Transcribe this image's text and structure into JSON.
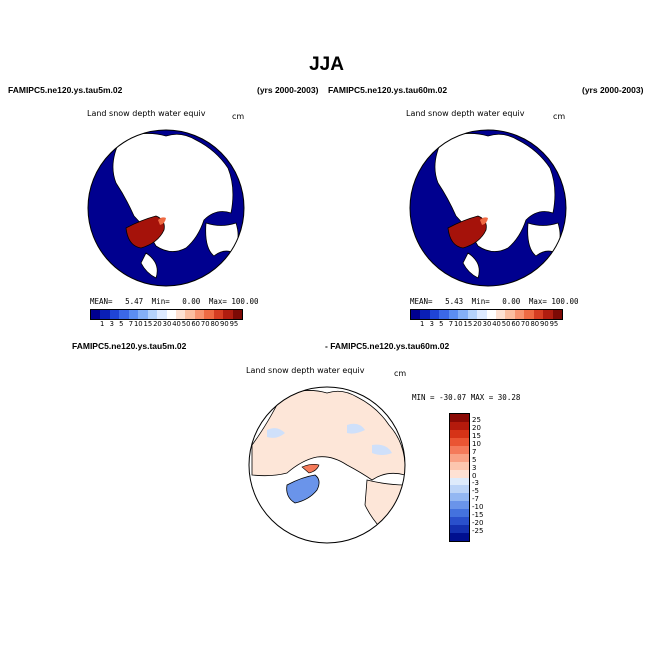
{
  "title": "JJA",
  "panels": {
    "left": {
      "case_label": "FAMIPC5.ne120.ys.tau5m.02",
      "years_label": "(yrs 2000-2003)",
      "variable": "Land snow depth water equiv",
      "units": "cm",
      "mean_label": "MEAN=",
      "mean": "5.47",
      "min_label": "Min=",
      "min": "0.00",
      "max_label": "Max=",
      "max": "100.00"
    },
    "right": {
      "case_label": "FAMIPC5.ne120.ys.tau60m.02",
      "years_label": "(yrs 2000-2003)",
      "variable": "Land snow depth water equiv",
      "units": "cm",
      "mean_label": "MEAN=",
      "mean": "5.43",
      "min_label": "Min=",
      "min": "0.00",
      "max_label": "Max=",
      "max": "100.00"
    },
    "diff": {
      "case_a": "FAMIPC5.ne120.ys.tau5m.02",
      "case_b": "- FAMIPC5.ne120.ys.tau60m.02",
      "variable": "Land snow depth water equiv",
      "units": "cm",
      "min_max": "MIN = -30.07  MAX =  30.28"
    }
  },
  "abs_colorbar": {
    "labels": [
      "1",
      "3",
      "5",
      "7",
      "10",
      "15",
      "20",
      "30",
      "40",
      "50",
      "60",
      "70",
      "80",
      "90",
      "95"
    ],
    "colors": [
      "#00008f",
      "#0a1fb5",
      "#1f44d6",
      "#3b68e8",
      "#5b8df2",
      "#85b0f7",
      "#b4d2fb",
      "#ddeaff",
      "#ffffff",
      "#fde1d2",
      "#fbbea0",
      "#f89470",
      "#ef6a43",
      "#d63d22",
      "#b01d10",
      "#7d0a06"
    ]
  },
  "diff_colorbar": {
    "labels": [
      "25",
      "20",
      "15",
      "10",
      "7",
      "5",
      "3",
      "0",
      "-3",
      "-5",
      "-7",
      "-10",
      "-15",
      "-20",
      "-25"
    ],
    "colors": [
      "#8a0a05",
      "#b41a0c",
      "#d63317",
      "#ea5533",
      "#f47a5a",
      "#f9a184",
      "#fcc6ae",
      "#fee1d3",
      "#deebfb",
      "#bcd4f7",
      "#93b7f2",
      "#6a94ea",
      "#4472de",
      "#2a50cc",
      "#1430b0",
      "#000f8f"
    ]
  },
  "colors": {
    "ocean": "#00008f",
    "land_snowfree": "#ffffff",
    "greenland": "#a5120a",
    "diff_land_pos": "#fde6d8",
    "diff_land_neg": "#cfe0fa"
  }
}
